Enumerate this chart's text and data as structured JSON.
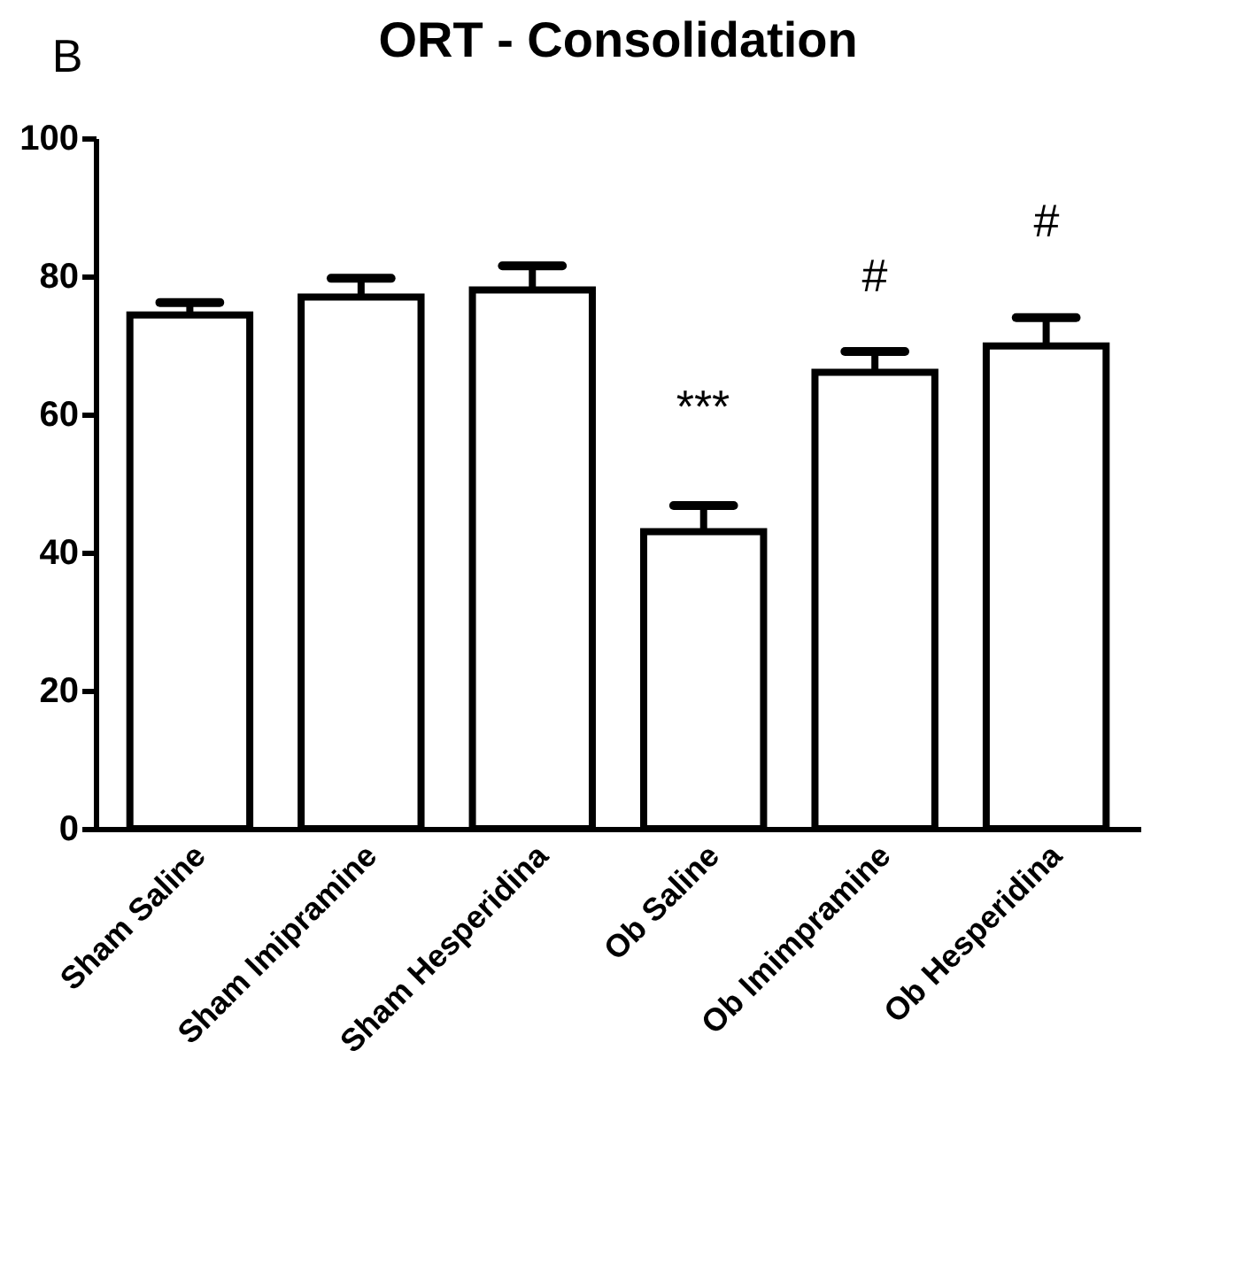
{
  "chart_data": {
    "type": "bar",
    "title": "ORT - Consolidation",
    "categories": [
      "Sham Saline",
      "Sham Imipramine",
      "Sham Hesperidina",
      "Ob Saline",
      "Ob Imimpramine",
      "Ob Hesperidina"
    ],
    "values": [
      74.4,
      77.0,
      78.0,
      43.0,
      66.1,
      69.9
    ],
    "errors": [
      1.8,
      2.7,
      3.5,
      3.8,
      3.0,
      4.1
    ],
    "color": "#ffffff",
    "ylim": [
      0,
      100
    ],
    "yticks": [
      0,
      20,
      40,
      60,
      80,
      100
    ],
    "grid": false,
    "annotations": [
      "B",
      "***",
      "#",
      "#"
    ]
  }
}
